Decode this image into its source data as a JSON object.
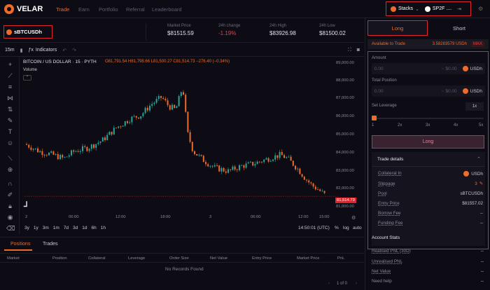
{
  "nav": {
    "logo": "VELAR",
    "links": [
      "Trade",
      "Earn",
      "Portfolio",
      "Referral",
      "Leaderboard"
    ],
    "wallet_chain": "Stacks",
    "wallet_address": "SP2F ....",
    "accent": "#f06a2a"
  },
  "market": {
    "selected": "sBTCUSDh",
    "stats": [
      {
        "label": "Market Price",
        "value": "$81515.59",
        "negative": false
      },
      {
        "label": "24h change",
        "value": "-1.19%",
        "negative": true
      },
      {
        "label": "24h High",
        "value": "$83926.98",
        "negative": false
      },
      {
        "label": "24h Low",
        "value": "$81500.02",
        "negative": false
      }
    ]
  },
  "chart_toolbar": {
    "interval": "15m",
    "indicators": "Indicators"
  },
  "chart": {
    "symbol": "BITCOIN / US DOLLAR · 15 · PYTH",
    "ohlc": "O81,791.54 H81,798.66 L81,500.27 C81,514.73 −276.40 (−0.34%)",
    "volume_label": "Volume",
    "price_labels": [
      "89,000.00",
      "88,000.00",
      "87,000.00",
      "86,000.00",
      "85,000.00",
      "84,000.00",
      "83,000.00",
      "82,000.00",
      "81,000.00"
    ],
    "current_price": "81,514.73",
    "time_labels": [
      "2",
      "06:00",
      "12:00",
      "18:00",
      "3",
      "06:00",
      "12:00",
      "15:00"
    ],
    "up_color": "#26a69a",
    "down_color": "#f06a2a",
    "current_price_color": "#e0242e"
  },
  "timebar": {
    "ranges": [
      "3y",
      "1y",
      "3m",
      "1m",
      "7d",
      "3d",
      "1d",
      "6h",
      "1h"
    ],
    "clock": "14:50:01 (UTC)",
    "options": [
      "%",
      "log",
      "auto"
    ]
  },
  "positions": {
    "tabs": [
      "Positions",
      "Trades"
    ],
    "columns": [
      "Market",
      "Position",
      "Collateral",
      "Leverage",
      "Order Size",
      "Net Value",
      "Entry Price",
      "Market Price",
      "PnL"
    ],
    "empty": "No Records Found",
    "pager": "1 of 0"
  },
  "side": {
    "tabs": [
      "Long",
      "Short"
    ],
    "available_label": "Available to Trade",
    "available_value": "3.58283579 USDh",
    "max_button": "MAX",
    "amount_label": "Amount",
    "amount_value": "0.00",
    "amount_usd": "~ $0.00",
    "amount_token": "USDh",
    "total_label": "Total Position",
    "total_value": "0.00",
    "total_usd": "~ $0.00",
    "total_token": "USDh",
    "leverage_label": "Set Leverage",
    "leverage_value": "1x",
    "leverage_ticks": [
      "1",
      "2x",
      "3x",
      "4x",
      "5x"
    ],
    "submit": "Long",
    "details_title": "Trade details",
    "details": [
      {
        "k": "Collateral In",
        "v": "USDh"
      },
      {
        "k": "Slippage",
        "v": "3"
      },
      {
        "k": "Pool",
        "v": "sBTCUSDh"
      },
      {
        "k": "Entry Price",
        "v": "$81557.02"
      },
      {
        "k": "Borrow Fee",
        "v": "--"
      },
      {
        "k": "Funding Fee",
        "v": "--"
      }
    ],
    "account_title": "Account Stats",
    "account": [
      {
        "k": "Realised PNL (30D)",
        "v": "--"
      },
      {
        "k": "Unrealised PNL",
        "v": "--"
      },
      {
        "k": "Net Value",
        "v": "--"
      },
      {
        "k": "Need help",
        "v": "--"
      }
    ]
  }
}
